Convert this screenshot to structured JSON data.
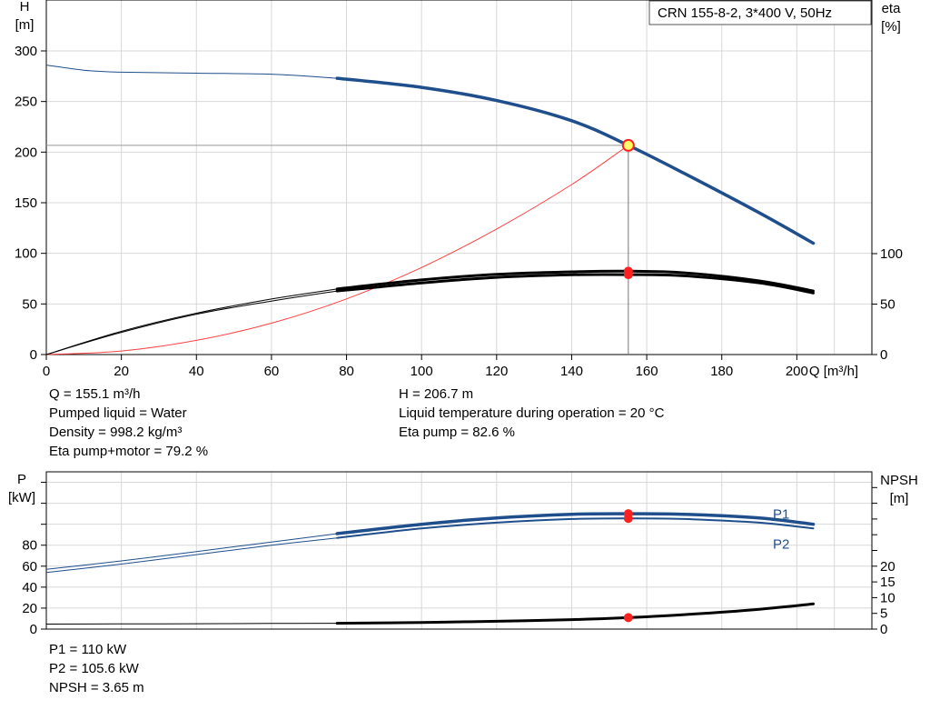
{
  "title_box": "CRN 155-8-2, 3*400 V, 50Hz",
  "info_top_left": [
    "Q = 155.1 m³/h",
    "Pumped liquid = Water",
    "Density = 998.2 kg/m³",
    "Eta pump+motor = 79.2 %"
  ],
  "info_top_right": [
    "H = 206.7 m",
    "Liquid temperature during operation = 20 °C",
    "Eta pump = 82.6 %"
  ],
  "info_bottom": [
    "P1 = 110 kW",
    "P2 = 105.6 kW",
    "NPSH = 3.65 m"
  ],
  "colors": {
    "head": "#1f4e8c",
    "eta": "#000000",
    "system": "#ff4040",
    "grid": "#d8d8d8",
    "marker": "#ff2020",
    "duty_fill": "#ffff66"
  },
  "chart_data": [
    {
      "type": "line",
      "title": "CRN 155-8-2, 3*400 V, 50Hz",
      "xlabel": "Q [m³/h]",
      "ylabel": "H\n[m]",
      "y2label": "eta\n[%]",
      "xlim": [
        0,
        220
      ],
      "ylim": [
        0,
        300
      ],
      "y2lim": [
        0,
        100
      ],
      "xticks": [
        0,
        20,
        40,
        60,
        80,
        100,
        120,
        140,
        160,
        180,
        200
      ],
      "yticks": [
        0,
        50,
        100,
        150,
        200,
        250,
        300
      ],
      "y2ticks": [
        0,
        50,
        100
      ],
      "grid": true,
      "duty_point": {
        "x": 155.1,
        "y": 206.7
      },
      "series": [
        {
          "name": "",
          "role": "head",
          "x": [
            0,
            10,
            20,
            40,
            60,
            77.5,
            100,
            120,
            140,
            155.1,
            170,
            190,
            204.4
          ],
          "y": [
            286,
            281,
            279,
            278,
            277,
            273,
            264,
            251,
            231,
            206.7,
            179,
            140,
            110
          ]
        },
        {
          "name": "",
          "role": "eta_pump",
          "x": [
            0,
            20,
            40,
            60,
            77.5,
            100,
            120,
            140,
            155.1,
            170,
            190,
            204.4
          ],
          "y": [
            0,
            23,
            41,
            55,
            65,
            74,
            79.5,
            82,
            82.6,
            81,
            73,
            63
          ]
        },
        {
          "name": "",
          "role": "eta_total",
          "x": [
            0,
            20,
            40,
            60,
            77.5,
            100,
            120,
            140,
            155.1,
            170,
            190,
            204.4
          ],
          "y": [
            0,
            22,
            40,
            53,
            63,
            71,
            76.5,
            79,
            79.2,
            78,
            71,
            61
          ]
        },
        {
          "name": "",
          "role": "system",
          "x": [
            0,
            20,
            40,
            60,
            80,
            100,
            120,
            140,
            155.1
          ],
          "y": [
            0,
            3.5,
            14,
            31,
            55,
            86,
            124,
            168,
            206.7
          ]
        }
      ]
    },
    {
      "type": "line",
      "xlabel": "",
      "ylabel": "P\n[kW]",
      "y2label": "NPSH\n[m]",
      "xlim": [
        0,
        220
      ],
      "ylim": [
        0,
        150
      ],
      "y2lim": [
        0,
        50
      ],
      "xticks": [
        0,
        20,
        40,
        60,
        80,
        100,
        120,
        140,
        160,
        180,
        200
      ],
      "yticks": [
        0,
        20,
        40,
        60,
        80
      ],
      "y2ticks": [
        0,
        5,
        10,
        15,
        20
      ],
      "grid": true,
      "series": [
        {
          "name": "P1",
          "role": "p1",
          "x": [
            0,
            20,
            40,
            60,
            77.5,
            100,
            120,
            140,
            155.1,
            170,
            190,
            204.4
          ],
          "y": [
            57,
            65,
            74,
            83,
            91,
            100,
            106,
            109.5,
            110,
            109.5,
            106,
            100
          ]
        },
        {
          "name": "P2",
          "role": "p2",
          "x": [
            0,
            20,
            40,
            60,
            77.5,
            100,
            120,
            140,
            155.1,
            170,
            190,
            204.4
          ],
          "y": [
            54,
            62,
            71,
            80,
            87,
            96,
            101.5,
            105,
            105.6,
            105,
            101.5,
            96
          ]
        },
        {
          "name": "",
          "role": "npsh",
          "x": [
            0,
            20,
            40,
            60,
            77.5,
            100,
            120,
            140,
            155.1,
            170,
            190,
            204.4
          ],
          "y": [
            1.6,
            1.65,
            1.7,
            1.8,
            1.85,
            2.1,
            2.5,
            3.0,
            3.65,
            4.6,
            6.3,
            8.0
          ]
        }
      ]
    }
  ]
}
